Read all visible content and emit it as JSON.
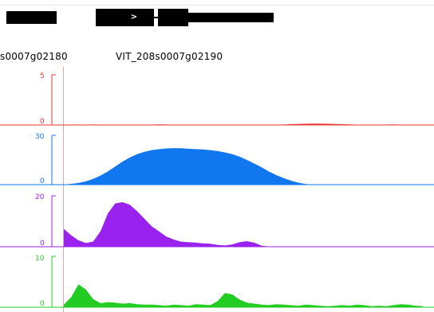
{
  "gene_labels": {
    "left": "s0007g02180",
    "right": "VIT_208s0007g02190"
  },
  "chevron": ">",
  "tracks": [
    {
      "id": "red",
      "color": "#ee3333",
      "ymax_label": "5",
      "ymin_label": "0",
      "max": 5,
      "values": [
        0,
        0.05,
        0.04,
        0.03,
        0.05,
        0.03,
        0.02,
        0.04,
        0.03,
        0.03,
        0.02,
        0.03,
        0.04,
        0.06,
        0.05,
        0.03,
        0.02,
        0.01,
        0,
        0,
        0,
        0,
        0,
        0,
        0,
        0,
        0,
        0,
        0,
        0.02,
        0.05,
        0.08,
        0.1,
        0.12,
        0.14,
        0.13,
        0.12,
        0.1,
        0.08,
        0.06,
        0.03,
        0.01,
        0.02,
        0.03,
        0.04,
        0.06,
        0.03,
        0.02,
        0.01,
        0
      ]
    },
    {
      "id": "blue",
      "color": "#1177ee",
      "ymax_label": "30",
      "ymin_label": "0",
      "max": 30,
      "values": [
        0,
        0.5,
        1,
        2,
        3.5,
        5.5,
        8,
        11,
        14,
        16.5,
        18.5,
        20,
        21,
        21.6,
        22,
        22.2,
        22.1,
        21.8,
        21.6,
        21.4,
        21,
        20.4,
        19.6,
        18.5,
        17,
        15,
        12.8,
        10.5,
        8,
        5.8,
        4,
        2.4,
        1.2,
        0.4,
        0.1,
        0,
        0,
        0,
        0,
        0,
        0,
        0,
        0,
        0,
        0,
        0,
        0,
        0,
        0,
        0
      ]
    },
    {
      "id": "purple",
      "color": "#9922ee",
      "ymax_label": "20",
      "ymin_label": "0",
      "max": 20,
      "values": [
        7,
        4.5,
        2.5,
        1.5,
        2,
        6,
        13,
        17,
        17.5,
        16.5,
        14,
        11,
        8,
        6,
        4,
        2.8,
        2,
        1.8,
        1.6,
        1.3,
        1.2,
        0.7,
        0.5,
        0.9,
        1.8,
        2.2,
        1.6,
        0.4,
        0.1,
        0,
        0,
        0,
        0,
        0,
        0,
        0,
        0,
        0,
        0,
        0,
        0,
        0,
        0,
        0,
        0,
        0,
        0,
        0,
        0,
        0
      ]
    },
    {
      "id": "green",
      "color": "#22cc22",
      "ymax_label": "10",
      "ymin_label": "0",
      "max": 10,
      "values": [
        0.5,
        2,
        4.5,
        3.5,
        1.6,
        0.8,
        1,
        0.9,
        0.7,
        0.8,
        0.6,
        0.5,
        0.5,
        0.4,
        0.3,
        0.5,
        0.4,
        0.3,
        0.6,
        0.5,
        0.4,
        1.2,
        2.8,
        2.5,
        1.5,
        0.9,
        0.7,
        0.5,
        0.4,
        0.6,
        0.5,
        0.4,
        0.3,
        0.5,
        0.4,
        0.3,
        0.2,
        0.3,
        0.4,
        0.3,
        0.5,
        0.4,
        0.2,
        0.3,
        0.2,
        0.4,
        0.6,
        0.5,
        0.3,
        0.2
      ]
    }
  ]
}
